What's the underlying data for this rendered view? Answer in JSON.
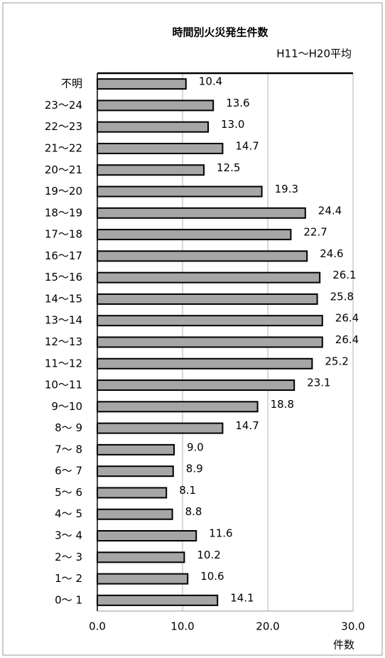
{
  "chart_data": {
    "type": "barh",
    "title": "時間別火災発生件数",
    "subtitle": "H11～H20平均",
    "x_label": "件数",
    "categories": [
      "不明",
      "23～24",
      "22～23",
      "21～22",
      "20～21",
      "19～20",
      "18～19",
      "17～18",
      "16～17",
      "15～16",
      "14～15",
      "13～14",
      "12～13",
      "11～12",
      "10～11",
      "9～10",
      "8～ 9",
      "7～ 8",
      "6～ 7",
      "5～ 6",
      "4～ 5",
      "3～ 4",
      "2～ 3",
      "1～ 2",
      "0～ 1"
    ],
    "values": [
      10.4,
      13.6,
      13.0,
      14.7,
      12.5,
      19.3,
      24.4,
      22.7,
      24.6,
      26.1,
      25.8,
      26.4,
      26.4,
      25.2,
      23.1,
      18.8,
      14.7,
      9.0,
      8.9,
      8.1,
      8.8,
      11.6,
      10.2,
      10.6,
      14.1
    ],
    "value_labels": [
      "10.4",
      "13.6",
      "13.0",
      "14.7",
      "12.5",
      "19.3",
      "24.4",
      "22.7",
      "24.6",
      "26.1",
      "25.8",
      "26.4",
      "26.4",
      "25.2",
      "23.1",
      "18.8",
      "14.7",
      "9.0",
      "8.9",
      "8.1",
      "8.8",
      "11.6",
      "10.2",
      "10.6",
      "14.1"
    ],
    "color": "#a6a6a6",
    "xlim": [
      0,
      30
    ],
    "xticks": [
      {
        "value": 0,
        "label": "0.0"
      },
      {
        "value": 10,
        "label": "10.0"
      },
      {
        "value": 20,
        "label": "20.0"
      },
      {
        "value": 30,
        "label": "30.0"
      }
    ],
    "grid": true
  }
}
